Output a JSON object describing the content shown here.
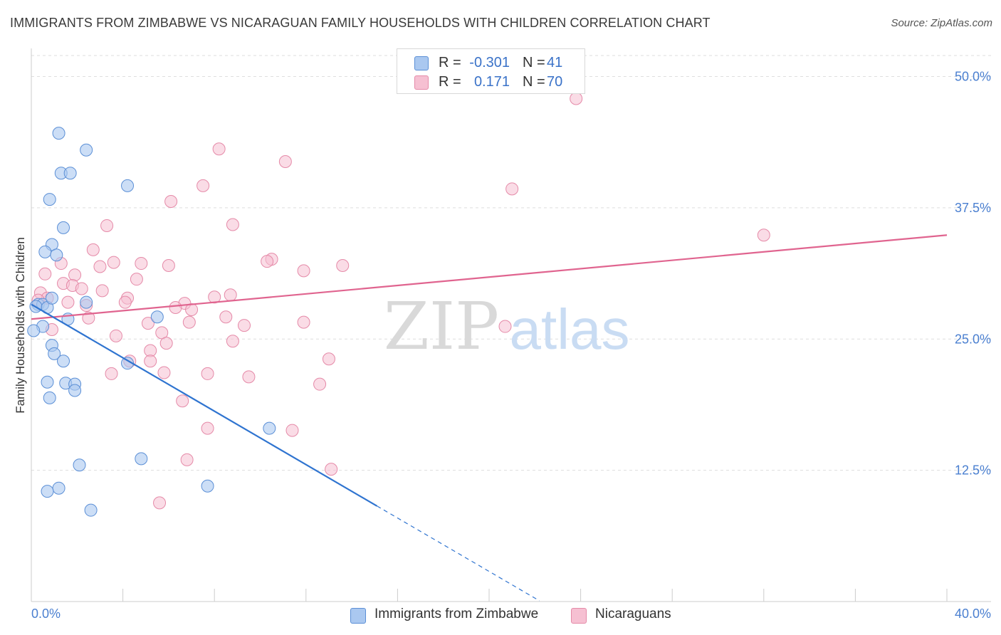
{
  "header": {
    "title": "IMMIGRANTS FROM ZIMBABWE VS NICARAGUAN FAMILY HOUSEHOLDS WITH CHILDREN CORRELATION CHART",
    "source": "Source: ZipAtlas.com"
  },
  "legend": {
    "rows": [
      {
        "r_label": "R =",
        "r_value": "-0.301",
        "n_label": "N =",
        "n_value": "41"
      },
      {
        "r_label": "R =",
        "r_value": "0.171",
        "n_label": "N =",
        "n_value": "70"
      }
    ]
  },
  "bottom_legend": {
    "series_a": "Immigrants from Zimbabwe",
    "series_b": "Nicaraguans"
  },
  "watermark": {
    "zip": "ZIP",
    "atlas": "atlas"
  },
  "colors": {
    "blue_fill": "#aac8f0",
    "blue_stroke": "#5b8fd6",
    "blue_line": "#2f74d0",
    "pink_fill": "#f6c0d2",
    "pink_stroke": "#e58aa8",
    "pink_line": "#e0648f",
    "tick_text": "#4a7fd0",
    "grid": "#dedede"
  },
  "chart_data": {
    "type": "scatter",
    "title": "IMMIGRANTS FROM ZIMBABWE VS NICARAGUAN FAMILY HOUSEHOLDS WITH CHILDREN CORRELATION CHART",
    "xlabel": "",
    "ylabel": "Family Households with Children",
    "xlim": [
      0,
      40
    ],
    "ylim": [
      0,
      52
    ],
    "x_tick_labels": [
      "0.0%",
      "40.0%"
    ],
    "y_ticks": [
      12.5,
      25.0,
      37.5,
      50.0
    ],
    "y_tick_labels": [
      "12.5%",
      "25.0%",
      "37.5%",
      "50.0%"
    ],
    "grid": true,
    "series": [
      {
        "name": "Immigrants from Zimbabwe",
        "color": "blue",
        "r": -0.301,
        "n": 41,
        "trend": {
          "x0": 0.0,
          "y0": 28.3,
          "x1": 15.1,
          "y1": 9.1,
          "dash_x_end": 22.2
        },
        "points": [
          [
            1.2,
            44.6
          ],
          [
            2.4,
            43.0
          ],
          [
            1.3,
            40.8
          ],
          [
            1.7,
            40.8
          ],
          [
            4.2,
            39.6
          ],
          [
            0.8,
            38.3
          ],
          [
            1.4,
            35.6
          ],
          [
            0.9,
            34.0
          ],
          [
            0.6,
            33.3
          ],
          [
            1.1,
            33.0
          ],
          [
            0.3,
            28.3
          ],
          [
            0.5,
            28.3
          ],
          [
            0.2,
            28.1
          ],
          [
            0.7,
            28.0
          ],
          [
            0.9,
            28.9
          ],
          [
            2.4,
            28.5
          ],
          [
            5.5,
            27.1
          ],
          [
            1.6,
            26.9
          ],
          [
            0.5,
            26.2
          ],
          [
            0.1,
            25.8
          ],
          [
            0.9,
            24.4
          ],
          [
            1.0,
            23.6
          ],
          [
            1.4,
            22.9
          ],
          [
            4.2,
            22.7
          ],
          [
            0.7,
            20.9
          ],
          [
            1.5,
            20.8
          ],
          [
            1.9,
            20.7
          ],
          [
            1.9,
            20.1
          ],
          [
            0.8,
            19.4
          ],
          [
            10.4,
            16.5
          ],
          [
            4.8,
            13.6
          ],
          [
            2.1,
            13.0
          ],
          [
            7.7,
            11.0
          ],
          [
            1.2,
            10.8
          ],
          [
            0.7,
            10.5
          ],
          [
            2.6,
            8.7
          ]
        ]
      },
      {
        "name": "Nicaraguans",
        "color": "pink",
        "r": 0.171,
        "n": 70,
        "trend": {
          "x0": 0.0,
          "y0": 26.9,
          "x1": 40.0,
          "y1": 34.9
        },
        "points": [
          [
            23.8,
            47.9
          ],
          [
            8.2,
            43.1
          ],
          [
            11.1,
            41.9
          ],
          [
            7.5,
            39.6
          ],
          [
            21.0,
            39.3
          ],
          [
            6.1,
            38.1
          ],
          [
            3.3,
            35.8
          ],
          [
            8.8,
            35.9
          ],
          [
            32.0,
            34.9
          ],
          [
            2.7,
            33.5
          ],
          [
            10.5,
            32.6
          ],
          [
            10.3,
            32.4
          ],
          [
            3.6,
            32.3
          ],
          [
            4.8,
            32.2
          ],
          [
            6.0,
            32.0
          ],
          [
            3.0,
            31.9
          ],
          [
            13.6,
            32.0
          ],
          [
            1.3,
            32.2
          ],
          [
            11.9,
            31.5
          ],
          [
            0.6,
            31.2
          ],
          [
            1.9,
            31.1
          ],
          [
            4.6,
            30.7
          ],
          [
            1.4,
            30.3
          ],
          [
            1.8,
            30.1
          ],
          [
            2.2,
            29.8
          ],
          [
            3.1,
            29.6
          ],
          [
            0.4,
            29.4
          ],
          [
            8.7,
            29.2
          ],
          [
            8.0,
            29.0
          ],
          [
            4.2,
            28.9
          ],
          [
            0.7,
            28.9
          ],
          [
            0.3,
            28.7
          ],
          [
            4.1,
            28.5
          ],
          [
            1.6,
            28.5
          ],
          [
            6.7,
            28.4
          ],
          [
            2.4,
            28.2
          ],
          [
            6.3,
            28.0
          ],
          [
            7.0,
            27.8
          ],
          [
            2.5,
            27.0
          ],
          [
            8.5,
            27.1
          ],
          [
            5.1,
            26.5
          ],
          [
            11.9,
            26.6
          ],
          [
            6.9,
            26.6
          ],
          [
            9.3,
            26.3
          ],
          [
            20.7,
            26.2
          ],
          [
            0.9,
            25.9
          ],
          [
            5.7,
            25.6
          ],
          [
            3.7,
            25.3
          ],
          [
            8.8,
            24.8
          ],
          [
            5.9,
            24.6
          ],
          [
            5.2,
            23.9
          ],
          [
            13.0,
            23.1
          ],
          [
            4.3,
            22.9
          ],
          [
            5.2,
            22.9
          ],
          [
            3.5,
            21.7
          ],
          [
            5.8,
            21.8
          ],
          [
            7.7,
            21.7
          ],
          [
            9.5,
            21.4
          ],
          [
            12.6,
            20.7
          ],
          [
            6.6,
            19.1
          ],
          [
            7.7,
            16.5
          ],
          [
            11.4,
            16.3
          ],
          [
            6.8,
            13.5
          ],
          [
            13.1,
            12.6
          ],
          [
            5.6,
            9.4
          ]
        ]
      }
    ]
  }
}
